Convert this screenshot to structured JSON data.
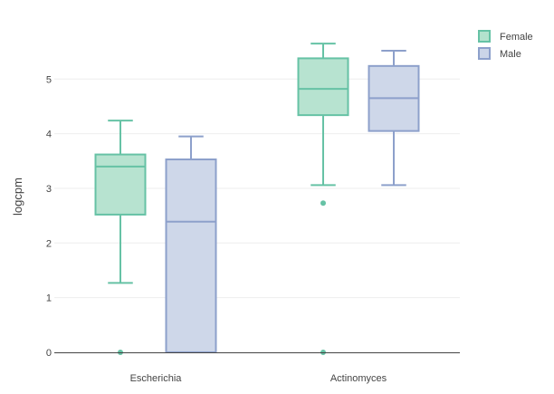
{
  "chart_data": {
    "type": "box",
    "ylabel": "logcpm",
    "ylim": [
      -0.15,
      5.95
    ],
    "yticks": [
      0,
      1,
      2,
      3,
      4,
      5
    ],
    "categories": [
      "Escherichia",
      "Actinomyces"
    ],
    "legend_position": "top-right",
    "grid": true,
    "series": [
      {
        "name": "Female",
        "color": "#66c2a5",
        "fill": "#b3e2cd",
        "boxes": [
          {
            "category": "Escherichia",
            "min": 1.27,
            "q1": 2.52,
            "median": 3.4,
            "q3": 3.62,
            "max": 4.24,
            "outliers": [
              0
            ]
          },
          {
            "category": "Actinomyces",
            "min": 3.06,
            "q1": 4.34,
            "median": 4.82,
            "q3": 5.38,
            "max": 5.65,
            "outliers": [
              2.73,
              0
            ]
          }
        ]
      },
      {
        "name": "Male",
        "color": "#8da0cb",
        "fill": "#cbd5e8",
        "boxes": [
          {
            "category": "Escherichia",
            "min": 0,
            "q1": 0,
            "median": 2.39,
            "q3": 3.53,
            "max": 3.95,
            "outliers": []
          },
          {
            "category": "Actinomyces",
            "min": 3.06,
            "q1": 4.05,
            "median": 4.65,
            "q3": 5.24,
            "max": 5.52,
            "outliers": []
          }
        ]
      }
    ]
  }
}
